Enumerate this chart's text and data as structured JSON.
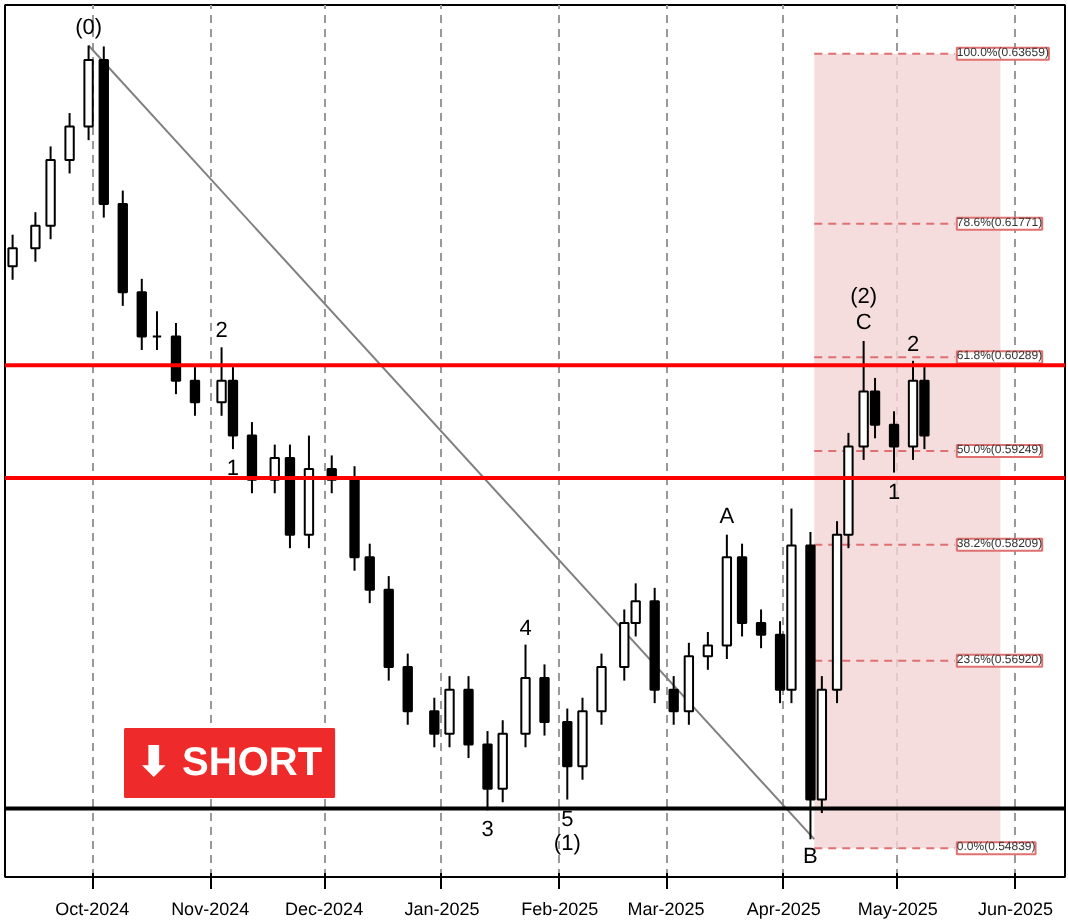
{
  "chart_data": {
    "type": "candlestick",
    "x": [
      "2024-09-10",
      "2024-09-16",
      "2024-09-20",
      "2024-09-25",
      "2024-09-30",
      "2024-10-04",
      "2024-10-09",
      "2024-10-14",
      "2024-10-18",
      "2024-10-23",
      "2024-10-28",
      "2024-11-04",
      "2024-11-07",
      "2024-11-12",
      "2024-11-18",
      "2024-11-22",
      "2024-11-27",
      "2024-12-03",
      "2024-12-09",
      "2024-12-13",
      "2024-12-18",
      "2024-12-23",
      "2024-12-30",
      "2025-01-03",
      "2025-01-08",
      "2025-01-13",
      "2025-01-17",
      "2025-01-23",
      "2025-01-28",
      "2025-02-03",
      "2025-02-07",
      "2025-02-12",
      "2025-02-18",
      "2025-02-21",
      "2025-02-26",
      "2025-03-03",
      "2025-03-07",
      "2025-03-12",
      "2025-03-17",
      "2025-03-21",
      "2025-03-26",
      "2025-03-31",
      "2025-04-03",
      "2025-04-08",
      "2025-04-11",
      "2025-04-15",
      "2025-04-18",
      "2025-04-22",
      "2025-04-25",
      "2025-04-30",
      "2025-05-05",
      "2025-05-08"
    ],
    "ohlc": [
      [
        0.613,
        0.6165,
        0.6115,
        0.615
      ],
      [
        0.615,
        0.619,
        0.6135,
        0.6175
      ],
      [
        0.6175,
        0.6263,
        0.616,
        0.6248
      ],
      [
        0.6248,
        0.63,
        0.6233,
        0.6285
      ],
      [
        0.6285,
        0.6375,
        0.627,
        0.6359
      ],
      [
        0.6359,
        0.6374,
        0.6184,
        0.6199
      ],
      [
        0.6199,
        0.6214,
        0.6086,
        0.6101
      ],
      [
        0.6101,
        0.6116,
        0.6037,
        0.6052
      ],
      [
        0.6052,
        0.608,
        0.6037,
        0.6052
      ],
      [
        0.6052,
        0.6067,
        0.5988,
        0.6003
      ],
      [
        0.6003,
        0.6018,
        0.5964,
        0.5979
      ],
      [
        0.5979,
        0.604,
        0.5964,
        0.6003
      ],
      [
        0.6003,
        0.6018,
        0.5927,
        0.5942
      ],
      [
        0.5942,
        0.5957,
        0.5878,
        0.5893
      ],
      [
        0.5893,
        0.5932,
        0.5878,
        0.5917
      ],
      [
        0.5917,
        0.5932,
        0.5817,
        0.5832
      ],
      [
        0.5832,
        0.5942,
        0.5817,
        0.5905
      ],
      [
        0.5905,
        0.592,
        0.5878,
        0.5893
      ],
      [
        0.5893,
        0.5908,
        0.5792,
        0.5807
      ],
      [
        0.5807,
        0.5822,
        0.5756,
        0.5771
      ],
      [
        0.5771,
        0.5786,
        0.567,
        0.5685
      ],
      [
        0.5685,
        0.57,
        0.5621,
        0.5636
      ],
      [
        0.5636,
        0.5651,
        0.5596,
        0.5611
      ],
      [
        0.5611,
        0.5675,
        0.5596,
        0.566
      ],
      [
        0.566,
        0.5675,
        0.5584,
        0.5599
      ],
      [
        0.5599,
        0.5614,
        0.5526,
        0.555
      ],
      [
        0.555,
        0.5626,
        0.5535,
        0.5611
      ],
      [
        0.5611,
        0.571,
        0.5596,
        0.5673
      ],
      [
        0.5673,
        0.5688,
        0.5609,
        0.5624
      ],
      [
        0.5624,
        0.5639,
        0.5538,
        0.5575
      ],
      [
        0.5575,
        0.5651,
        0.556,
        0.5636
      ],
      [
        0.5636,
        0.57,
        0.5621,
        0.5685
      ],
      [
        0.5685,
        0.5749,
        0.567,
        0.5734
      ],
      [
        0.5734,
        0.5778,
        0.5719,
        0.5758
      ],
      [
        0.5758,
        0.5773,
        0.5645,
        0.566
      ],
      [
        0.566,
        0.5675,
        0.5621,
        0.5636
      ],
      [
        0.5636,
        0.5712,
        0.5621,
        0.5697
      ],
      [
        0.5697,
        0.5724,
        0.5682,
        0.5709
      ],
      [
        0.5709,
        0.5832,
        0.5694,
        0.5807
      ],
      [
        0.5807,
        0.5822,
        0.5719,
        0.5734
      ],
      [
        0.5734,
        0.5749,
        0.5706,
        0.5721
      ],
      [
        0.5721,
        0.5736,
        0.5645,
        0.566
      ],
      [
        0.566,
        0.5861,
        0.5645,
        0.582
      ],
      [
        0.582,
        0.5835,
        0.5494,
        0.5538
      ],
      [
        0.5538,
        0.5675,
        0.5523,
        0.566
      ],
      [
        0.566,
        0.5847,
        0.5645,
        0.5832
      ],
      [
        0.5832,
        0.5945,
        0.5817,
        0.593
      ],
      [
        0.593,
        0.6047,
        0.5915,
        0.5991
      ],
      [
        0.5991,
        0.6006,
        0.5939,
        0.5954
      ],
      [
        0.5954,
        0.5969,
        0.5901,
        0.593
      ],
      [
        0.593,
        0.6025,
        0.5915,
        0.6003
      ],
      [
        0.6003,
        0.6018,
        0.5927,
        0.5942
      ]
    ],
    "series": [
      {
        "type": "line",
        "color": "#808080",
        "x": [
          "2024-09-30",
          "2025-04-09"
        ],
        "values": [
          0.6375,
          0.5494
        ]
      }
    ],
    "xlim": [
      "2024-09-08",
      "2025-06-14"
    ],
    "xticks": [
      {
        "value": "2024-10-01",
        "label": "Oct-2024"
      },
      {
        "value": "2024-11-01",
        "label": "Nov-2024"
      },
      {
        "value": "2024-12-01",
        "label": "Dec-2024"
      },
      {
        "value": "2025-01-01",
        "label": "Jan-2025"
      },
      {
        "value": "2025-02-01",
        "label": "Feb-2025"
      },
      {
        "value": "2025-03-01",
        "label": "Mar-2025"
      },
      {
        "value": "2025-04-01",
        "label": "Apr-2025"
      },
      {
        "value": "2025-05-01",
        "label": "May-2025"
      },
      {
        "value": "2025-06-01",
        "label": "Jun-2025"
      }
    ],
    "ylim": [
      0.5452,
      0.642
    ],
    "tick_labels": "x",
    "grid": "x",
    "ref_lines": [
      {
        "axis": "y",
        "value": 0.63659,
        "label": "100.0%(0.63659)",
        "color": "#e07070",
        "line_style": "dashed"
      },
      {
        "axis": "y",
        "value": 0.61771,
        "label": "78.6%(0.61771)",
        "color": "#e07070",
        "line_style": "dashed"
      },
      {
        "axis": "y",
        "value": 0.60289,
        "label": "61.8%(0.60289)",
        "color": "#e07070",
        "line_style": "dashed"
      },
      {
        "axis": "y",
        "value": 0.59249,
        "label": "50.0%(0.59249)",
        "color": "#e07070",
        "line_style": "dashed"
      },
      {
        "axis": "y",
        "value": 0.58209,
        "label": "38.2%(0.58209)",
        "color": "#e07070",
        "line_style": "dashed"
      },
      {
        "axis": "y",
        "value": 0.5692,
        "label": "23.6%(0.56920)",
        "color": "#e07070",
        "line_style": "dashed"
      },
      {
        "axis": "y",
        "value": 0.54839,
        "label": "0.0%(0.54839)",
        "color": "#e07070",
        "line_style": "dashed"
      },
      {
        "axis": "y",
        "value": 0.602,
        "color": "#ff0000",
        "line_style": "solid"
      },
      {
        "axis": "y",
        "value": 0.5895,
        "color": "#ff0000",
        "line_style": "solid"
      },
      {
        "axis": "y",
        "value": 0.5528,
        "color": "#000000",
        "line_style": "solid"
      }
    ],
    "bands": [
      {
        "axis": "x",
        "from": "2025-04-09",
        "to": "2025-05-28",
        "color": "#f4d4d4"
      }
    ],
    "annotations": [
      {
        "text": "(0)",
        "x": "2024-09-30",
        "y": 0.6375
      },
      {
        "text": "2",
        "x": "2024-11-04",
        "y": 0.604
      },
      {
        "text": "1",
        "x": "2024-11-07",
        "y": 0.5927
      },
      {
        "text": "3",
        "x": "2025-01-13",
        "y": 0.5526
      },
      {
        "text": "4",
        "x": "2025-01-23",
        "y": 0.571
      },
      {
        "text": "5",
        "x": "2025-02-03",
        "y": 0.5538
      },
      {
        "text": "(1)",
        "x": "2025-02-03",
        "y": 0.5538
      },
      {
        "text": "A",
        "x": "2025-03-17",
        "y": 0.5832
      },
      {
        "text": "B",
        "x": "2025-04-08",
        "y": 0.5494
      },
      {
        "text": "C",
        "x": "2025-04-22",
        "y": 0.6047
      },
      {
        "text": "(2)",
        "x": "2025-04-22",
        "y": 0.6047
      },
      {
        "text": "2",
        "x": "2025-05-05",
        "y": 0.6025
      },
      {
        "text": "1",
        "x": "2025-04-30",
        "y": 0.5901
      },
      "⬇ SHORT"
    ]
  }
}
